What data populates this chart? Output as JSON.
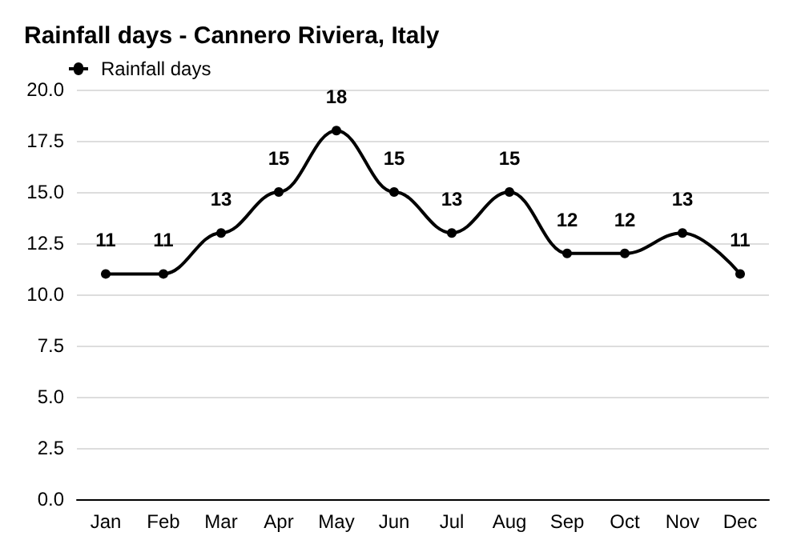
{
  "chart_data": {
    "type": "line",
    "title": "Rainfall days - Cannero Riviera, Italy",
    "categories": [
      "Jan",
      "Feb",
      "Mar",
      "Apr",
      "May",
      "Jun",
      "Jul",
      "Aug",
      "Sep",
      "Oct",
      "Nov",
      "Dec"
    ],
    "series": [
      {
        "name": "Rainfall days",
        "color": "#000000",
        "values": [
          11,
          11,
          13,
          15,
          18,
          15,
          13,
          15,
          12,
          12,
          13,
          11
        ]
      }
    ],
    "ylim": [
      0,
      20
    ],
    "yticks": [
      {
        "value": 0,
        "label": "0.0"
      },
      {
        "value": 2.5,
        "label": "2.5"
      },
      {
        "value": 5,
        "label": "5.0"
      },
      {
        "value": 7.5,
        "label": "7.5"
      },
      {
        "value": 10,
        "label": "10.0"
      },
      {
        "value": 12.5,
        "label": "12.5"
      },
      {
        "value": 15,
        "label": "15.0"
      },
      {
        "value": 17.5,
        "label": "17.5"
      },
      {
        "value": 20,
        "label": "20.0"
      }
    ],
    "grid": "y",
    "legend": "top left",
    "marker": "circle",
    "line_style": "solid",
    "data_labels": true
  }
}
